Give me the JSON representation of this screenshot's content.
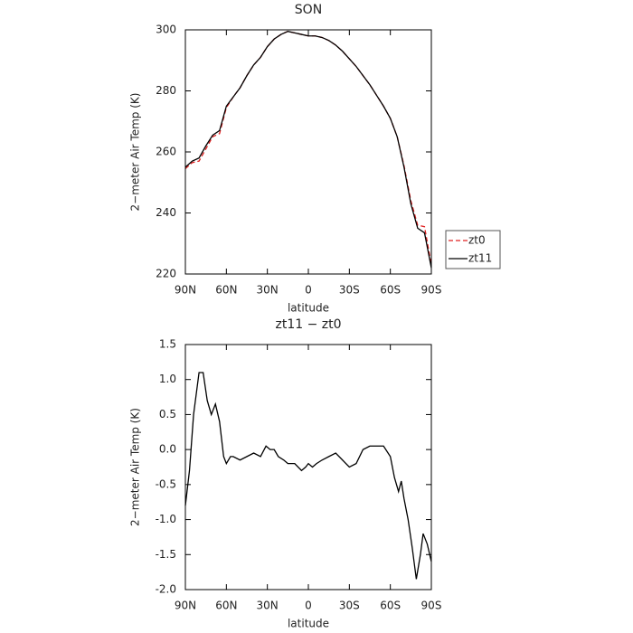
{
  "chart_data": [
    {
      "type": "line",
      "title": "SON",
      "xlabel": "latitude",
      "ylabel": "2−meter Air Temp (K)",
      "x": [
        90,
        85,
        80,
        75,
        70,
        65,
        60,
        55,
        50,
        45,
        40,
        35,
        30,
        25,
        20,
        15,
        10,
        5,
        0,
        -5,
        -10,
        -15,
        -20,
        -25,
        -30,
        -35,
        -40,
        -45,
        -50,
        -55,
        -60,
        -65,
        -70,
        -75,
        -80,
        -85,
        -90
      ],
      "xlim": [
        90,
        -90
      ],
      "xticks": [
        {
          "value": 90,
          "label": "90N"
        },
        {
          "value": 60,
          "label": "60N"
        },
        {
          "value": 30,
          "label": "30N"
        },
        0,
        {
          "value": -30,
          "label": "30S"
        },
        {
          "value": -60,
          "label": "60S"
        },
        {
          "value": -90,
          "label": "90S"
        }
      ],
      "ylim": [
        220,
        300
      ],
      "yticks": [
        220,
        240,
        260,
        280,
        300
      ],
      "legend": "outside-right",
      "series": [
        {
          "name": "zt0",
          "color": "#e02020",
          "dashed": true,
          "values": [
            254.5,
            256.5,
            257,
            261,
            265,
            266,
            274.5,
            278,
            281,
            285,
            288.5,
            291,
            294.5,
            297,
            298.5,
            299.5,
            299,
            298.5,
            298,
            298,
            297.5,
            296.5,
            295,
            293,
            290.5,
            288,
            285,
            282,
            278.5,
            275,
            271,
            265,
            255.5,
            244,
            236,
            235.5,
            223
          ]
        },
        {
          "name": "zt11",
          "color": "#000000",
          "dashed": false,
          "values": [
            255,
            257,
            258,
            262,
            265.5,
            267,
            275,
            278,
            281,
            285,
            288.5,
            291,
            294.5,
            297,
            298.5,
            299.5,
            299,
            298.5,
            298,
            298,
            297.5,
            296.5,
            295,
            293,
            290.5,
            288,
            285,
            282,
            278.5,
            275,
            271,
            265,
            255,
            243,
            235,
            233.5,
            222
          ]
        }
      ]
    },
    {
      "type": "line",
      "title": "zt11 − zt0",
      "xlabel": "latitude",
      "ylabel": "2−meter Air Temp (K)",
      "x": [
        90,
        87,
        84,
        80,
        77,
        74,
        71,
        68,
        65,
        62,
        60,
        57,
        55,
        50,
        45,
        40,
        35,
        31,
        28,
        25,
        22,
        18,
        15,
        10,
        5,
        2,
        0,
        -3,
        -6,
        -10,
        -15,
        -20,
        -25,
        -30,
        -35,
        -40,
        -45,
        -50,
        -55,
        -60,
        -63,
        -66,
        -68,
        -70,
        -73,
        -76,
        -79,
        -82,
        -84,
        -87,
        -90
      ],
      "xlim": [
        90,
        -90
      ],
      "xticks": [
        {
          "value": 90,
          "label": "90N"
        },
        {
          "value": 60,
          "label": "60N"
        },
        {
          "value": 30,
          "label": "30N"
        },
        0,
        {
          "value": -30,
          "label": "30S"
        },
        {
          "value": -60,
          "label": "60S"
        },
        {
          "value": -90,
          "label": "90S"
        }
      ],
      "ylim": [
        -2,
        1.5
      ],
      "yticks": [
        {
          "value": -2,
          "label": "-2.0"
        },
        -1.5,
        {
          "value": -1,
          "label": "-1.0"
        },
        -0.5,
        {
          "value": 0,
          "label": "0.0"
        },
        0.5,
        {
          "value": 1,
          "label": "1.0"
        },
        1.5
      ],
      "series": [
        {
          "color": "#000000",
          "dashed": false,
          "values": [
            -0.8,
            -0.3,
            0.5,
            1.1,
            1.1,
            0.7,
            0.5,
            0.65,
            0.4,
            -0.1,
            -0.2,
            -0.1,
            -0.1,
            -0.15,
            -0.1,
            -0.05,
            -0.1,
            0.05,
            0,
            0,
            -0.1,
            -0.15,
            -0.2,
            -0.2,
            -0.3,
            -0.25,
            -0.2,
            -0.25,
            -0.2,
            -0.15,
            -0.1,
            -0.05,
            -0.15,
            -0.25,
            -0.2,
            0,
            0.05,
            0.05,
            0.05,
            -0.1,
            -0.4,
            -0.6,
            -0.45,
            -0.7,
            -1,
            -1.4,
            -1.85,
            -1.5,
            -1.2,
            -1.35,
            -1.6
          ]
        }
      ]
    }
  ]
}
